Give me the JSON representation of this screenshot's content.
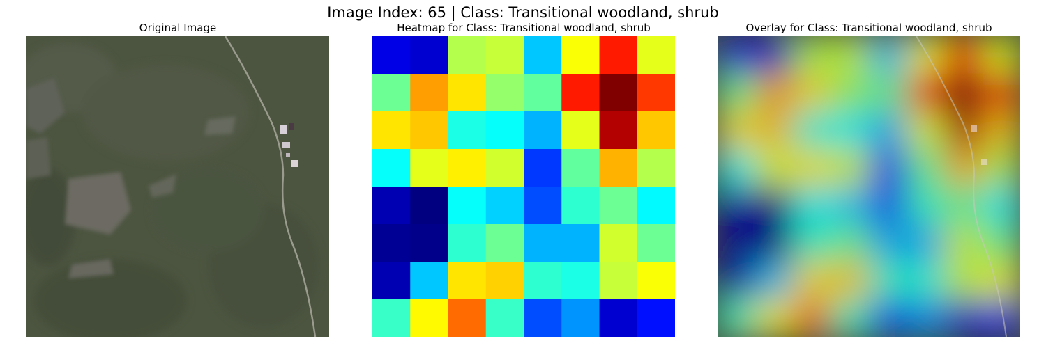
{
  "figure": {
    "suptitle": "Image Index: 65 | Class: Transitional woodland, shrub"
  },
  "panels": [
    {
      "title": "Original Image"
    },
    {
      "title": "Heatmap for Class: Transitional woodland, shrub"
    },
    {
      "title": "Overlay for Class: Transitional woodland, shrub"
    }
  ],
  "heatmap": {
    "colormap": "jet",
    "rows": 8,
    "cols": 8,
    "values": [
      [
        0.1,
        0.08,
        0.55,
        0.57,
        0.32,
        0.62,
        0.85,
        0.6
      ],
      [
        0.48,
        0.72,
        0.65,
        0.52,
        0.47,
        0.85,
        1.0,
        0.82
      ],
      [
        0.65,
        0.68,
        0.4,
        0.38,
        0.3,
        0.6,
        0.95,
        0.68
      ],
      [
        0.38,
        0.6,
        0.64,
        0.58,
        0.18,
        0.47,
        0.7,
        0.55
      ],
      [
        0.05,
        0.0,
        0.38,
        0.33,
        0.2,
        0.42,
        0.48,
        0.37
      ],
      [
        0.02,
        0.01,
        0.42,
        0.48,
        0.3,
        0.3,
        0.58,
        0.48
      ],
      [
        0.05,
        0.32,
        0.65,
        0.67,
        0.42,
        0.4,
        0.57,
        0.62
      ],
      [
        0.43,
        0.63,
        0.77,
        0.43,
        0.2,
        0.27,
        0.08,
        0.14
      ]
    ]
  },
  "colors": {
    "satellite_base": "#4c5540",
    "field_gray": "#6c6b62",
    "road": "#a8a89a",
    "rooftop": "#d8d0d8"
  }
}
